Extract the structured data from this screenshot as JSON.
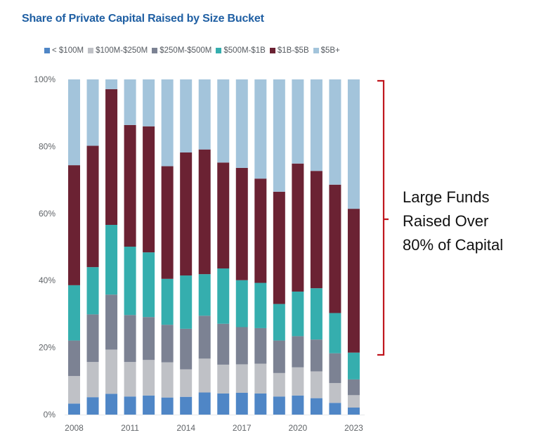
{
  "chart_data": {
    "type": "bar",
    "stacked": true,
    "title": "Share of Private Capital Raised by Size Bucket",
    "xlabel": "",
    "ylabel": "",
    "ylim": [
      0,
      100
    ],
    "y_ticks": [
      "0%",
      "20%",
      "40%",
      "60%",
      "80%",
      "100%"
    ],
    "y_tick_values": [
      0,
      20,
      40,
      60,
      80,
      100
    ],
    "x_tick_labels": [
      "2008",
      "2011",
      "2014",
      "2017",
      "2020",
      "2023"
    ],
    "categories": [
      "2008",
      "2009",
      "2010",
      "2011",
      "2012",
      "2013",
      "2014",
      "2015",
      "2016",
      "2017",
      "2018",
      "2019",
      "2020",
      "2021",
      "2022",
      "2023"
    ],
    "legend_position": "top",
    "grid": false,
    "series": [
      {
        "name": "< $100M",
        "color": "#4f86c6",
        "values": [
          3.3,
          5.2,
          6.2,
          5.4,
          5.7,
          5.1,
          5.3,
          6.6,
          6.3,
          6.5,
          6.3,
          5.4,
          5.7,
          4.9,
          3.5,
          2.1
        ]
      },
      {
        "name": "$100M-$250M",
        "color": "#bfc1c6",
        "values": [
          8.2,
          10.5,
          13.2,
          10.3,
          10.6,
          10.5,
          8.2,
          10.1,
          8.6,
          8.5,
          8.9,
          7.0,
          8.4,
          8.0,
          5.9,
          3.7
        ]
      },
      {
        "name": "$250M-$500M",
        "color": "#7c8293",
        "values": [
          10.6,
          14.2,
          16.4,
          14.0,
          12.8,
          11.2,
          12.1,
          12.8,
          12.2,
          11.1,
          10.6,
          9.7,
          9.3,
          9.5,
          8.9,
          4.7
        ]
      },
      {
        "name": "$500M-$1B",
        "color": "#35aeae",
        "values": [
          16.5,
          14.1,
          20.8,
          20.4,
          19.3,
          13.7,
          15.9,
          12.4,
          16.5,
          14.0,
          13.5,
          10.9,
          13.3,
          15.3,
          12.0,
          8.0
        ]
      },
      {
        "name": "$1B-$5B",
        "color": "#6b2233",
        "values": [
          35.8,
          36.2,
          40.5,
          36.3,
          37.6,
          33.6,
          36.7,
          37.2,
          31.6,
          33.5,
          31.1,
          33.5,
          38.2,
          35.0,
          38.3,
          42.9
        ]
      },
      {
        "name": "$5B+",
        "color": "#a3c4db",
        "values": [
          25.6,
          19.8,
          2.9,
          13.6,
          14.0,
          25.9,
          21.8,
          20.9,
          24.8,
          26.4,
          29.6,
          33.5,
          25.1,
          27.3,
          31.4,
          38.6
        ]
      }
    ],
    "annotation": {
      "lines": [
        "Large Funds",
        "Raised Over",
        "80% of Capital"
      ],
      "bracket_color": "#c0161e",
      "bracket_range": [
        18,
        100
      ]
    }
  },
  "title": "Share of Private Capital Raised by Size Bucket",
  "legend": [
    {
      "label": "< $100M",
      "color": "#4f86c6"
    },
    {
      "label": "$100M-$250M",
      "color": "#bfc1c6"
    },
    {
      "label": "$250M-$500M",
      "color": "#7c8293"
    },
    {
      "label": "$500M-$1B",
      "color": "#35aeae"
    },
    {
      "label": "$1B-$5B",
      "color": "#6b2233"
    },
    {
      "label": "$5B+",
      "color": "#a3c4db"
    }
  ],
  "annotation_lines": [
    "Large Funds",
    "Raised Over",
    "80% of Capital"
  ]
}
